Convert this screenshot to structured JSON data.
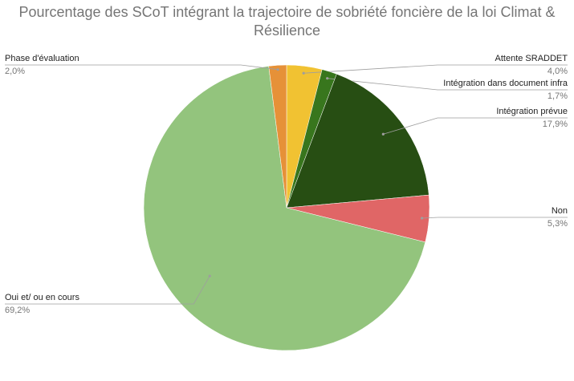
{
  "chart_data": {
    "type": "pie",
    "title": "Pourcentage des SCoT intégrant la trajectoire de sobriété foncière de la loi Climat & Résilience",
    "categories": [
      "Attente SRADDET",
      "Intégration dans document infra",
      "Intégration prévue",
      "Non",
      "Oui et/ ou en cours",
      "Phase d'évaluation"
    ],
    "values": [
      4.0,
      1.7,
      17.9,
      5.3,
      69.2,
      2.0
    ],
    "value_labels": [
      "4,0%",
      "1,7%",
      "17,9%",
      "5,3%",
      "69,2%",
      "2,0%"
    ],
    "colors": [
      "#f1c232",
      "#38761d",
      "#274e13",
      "#e06666",
      "#93c47d",
      "#e69138"
    ]
  }
}
